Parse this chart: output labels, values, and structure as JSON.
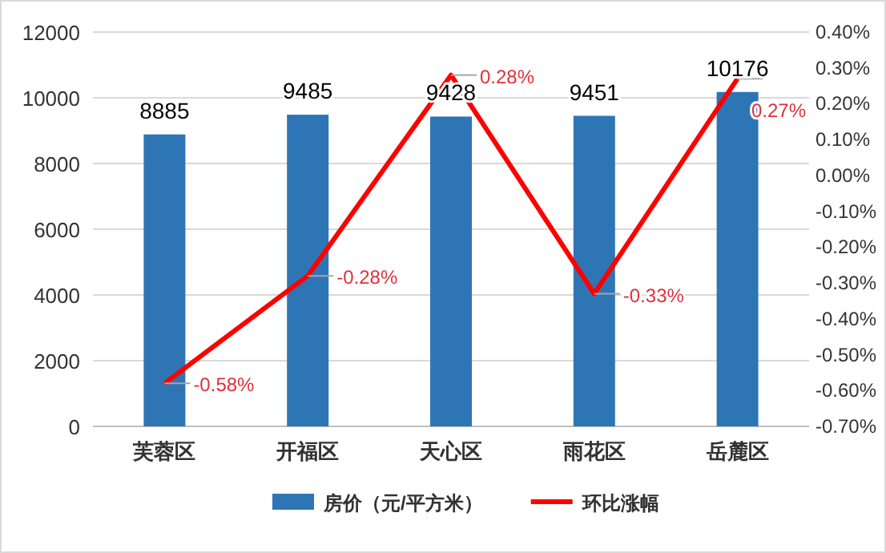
{
  "chart_data": {
    "type": "bar",
    "categories": [
      "芙蓉区",
      "开福区",
      "天心区",
      "雨花区",
      "岳麓区"
    ],
    "series": [
      {
        "name": "房价（元/平方米）",
        "color": "#2e75b6",
        "values": [
          8885,
          9485,
          9428,
          9451,
          10176
        ],
        "value_labels": [
          "8885",
          "9485",
          "9428",
          "9451",
          "10176"
        ]
      },
      {
        "name": "环比涨幅",
        "type": "line",
        "axis": "y2",
        "color": "#ff0000",
        "values": [
          -0.58,
          -0.28,
          0.28,
          -0.33,
          0.27
        ],
        "value_labels": [
          "-0.58%",
          "-0.28%",
          "0.28%",
          "-0.33%",
          "0.27%"
        ]
      }
    ],
    "ylim": [
      0,
      12000
    ],
    "yticks": [
      0,
      2000,
      4000,
      6000,
      8000,
      10000,
      12000
    ],
    "y2lim": [
      -0.7,
      0.4
    ],
    "y2ticks": [
      {
        "value": -0.7,
        "label": "-0.70%"
      },
      {
        "value": -0.6,
        "label": "-0.60%"
      },
      {
        "value": -0.5,
        "label": "-0.50%"
      },
      {
        "value": -0.4,
        "label": "-0.40%"
      },
      {
        "value": -0.3,
        "label": "-0.30%"
      },
      {
        "value": -0.2,
        "label": "-0.20%"
      },
      {
        "value": -0.1,
        "label": "-0.10%"
      },
      {
        "value": 0,
        "label": "0.00%"
      },
      {
        "value": 0.1,
        "label": "0.10%"
      },
      {
        "value": 0.2,
        "label": "0.20%"
      },
      {
        "value": 0.3,
        "label": "0.30%"
      },
      {
        "value": 0.4,
        "label": "0.40%"
      }
    ],
    "grid": "y",
    "legend": "bottom",
    "line_style": "solid"
  }
}
